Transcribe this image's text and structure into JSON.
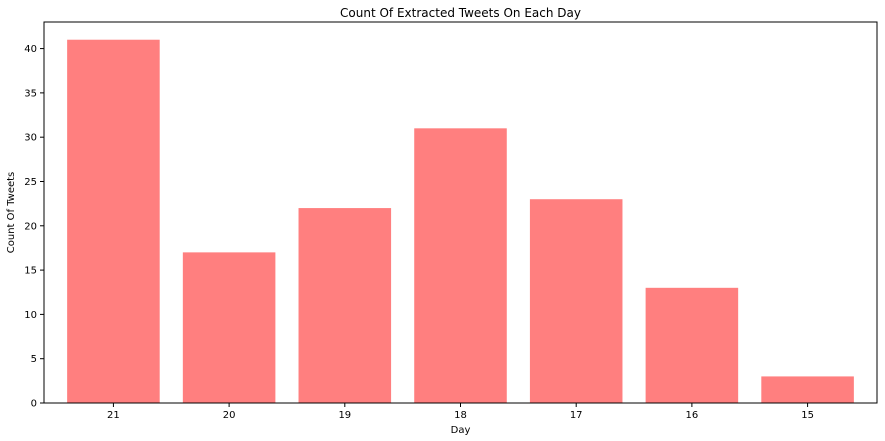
{
  "chart_data": {
    "type": "bar",
    "title": "Count Of Extracted Tweets On Each Day",
    "xlabel": "Day",
    "ylabel": "Count Of Tweets",
    "categories": [
      "21",
      "20",
      "19",
      "18",
      "17",
      "16",
      "15"
    ],
    "values": [
      41,
      17,
      22,
      31,
      23,
      13,
      3
    ],
    "ylim": [
      0,
      43
    ],
    "yticks": [
      0,
      5,
      10,
      15,
      20,
      25,
      30,
      35,
      40
    ],
    "grid": false,
    "bar_color": "#ff7f7f",
    "legend": "none"
  }
}
